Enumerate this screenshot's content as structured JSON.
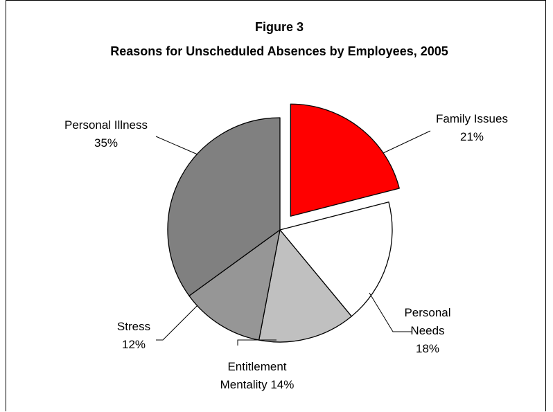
{
  "chart_data": {
    "type": "pie",
    "title": "Figure 3",
    "subtitle": "Reasons for Unscheduled Absences by Employees, 2005",
    "slices": [
      {
        "label_lines": [
          "Family Issues",
          "21%"
        ],
        "name": "Family Issues",
        "value": 21,
        "color": "#ff0000",
        "exploded": true
      },
      {
        "label_lines": [
          "Personal",
          "Needs",
          "18%"
        ],
        "name": "Personal Needs",
        "value": 18,
        "color": "#ffffff",
        "exploded": false
      },
      {
        "label_lines": [
          "Entitlement",
          "Mentality 14%"
        ],
        "name": "Entitlement Mentality",
        "value": 14,
        "color": "#c0c0c0",
        "exploded": false
      },
      {
        "label_lines": [
          "Stress",
          "12%"
        ],
        "name": "Stress",
        "value": 12,
        "color": "#969696",
        "exploded": false
      },
      {
        "label_lines": [
          "Personal Illness",
          "35%"
        ],
        "name": "Personal Illness",
        "value": 35,
        "color": "#808080",
        "exploded": false
      }
    ]
  }
}
